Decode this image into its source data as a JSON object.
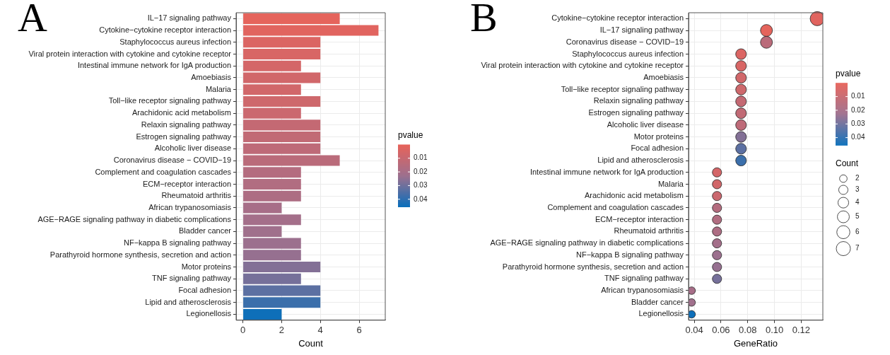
{
  "chart_data": [
    {
      "type": "bar",
      "title": "A",
      "orientation": "horizontal",
      "xlabel": "Count",
      "clabel": "pvalue",
      "grid": true,
      "categories": [
        "IL−17 signaling pathway",
        "Cytokine−cytokine receptor interaction",
        "Staphylococcus aureus infection",
        "Viral protein interaction with cytokine and cytokine receptor",
        "Intestinal immune network for IgA production",
        "Amoebiasis",
        "Malaria",
        "Toll−like receptor signaling pathway",
        "Arachidonic acid metabolism",
        "Relaxin signaling pathway",
        "Estrogen signaling pathway",
        "Alcoholic liver disease",
        "Coronavirus disease − COVID−19",
        "Complement and coagulation cascades",
        "ECM−receptor interaction",
        "Rheumatoid arthritis",
        "African trypanosomiasis",
        "AGE−RAGE signaling pathway in diabetic complications",
        "Bladder cancer",
        "NF−kappa B signaling pathway",
        "Parathyroid hormone synthesis, secretion and action",
        "Motor proteins",
        "TNF signaling pathway",
        "Focal adhesion",
        "Lipid and atherosclerosis",
        "Legionellosis"
      ],
      "values": [
        5,
        7,
        4,
        4,
        3,
        4,
        3,
        4,
        3,
        4,
        4,
        4,
        5,
        3,
        3,
        3,
        2,
        3,
        2,
        3,
        3,
        4,
        3,
        4,
        4,
        2
      ],
      "cvalues": [
        0.001,
        0.002,
        0.004,
        0.005,
        0.006,
        0.007,
        0.007,
        0.008,
        0.009,
        0.011,
        0.012,
        0.013,
        0.014,
        0.016,
        0.017,
        0.018,
        0.02,
        0.021,
        0.022,
        0.023,
        0.024,
        0.027,
        0.029,
        0.033,
        0.038,
        0.045
      ],
      "clim": [
        0,
        0.0455
      ],
      "cticks": [
        0.01,
        0.02,
        0.03,
        0.04
      ],
      "xlim": [
        -0.35,
        7.35
      ],
      "xticks": [
        0,
        2,
        4,
        6
      ]
    },
    {
      "type": "bubble",
      "title": "B",
      "orientation": "horizontal",
      "xlabel": "GeneRatio",
      "clabel": "pvalue",
      "legend_title": "Count",
      "grid": true,
      "categories": [
        "Cytokine−cytokine receptor interaction",
        "IL−17 signaling pathway",
        "Coronavirus disease − COVID−19",
        "Staphylococcus aureus infection",
        "Viral protein interaction with cytokine and cytokine receptor",
        "Amoebiasis",
        "Toll−like receptor signaling pathway",
        "Relaxin signaling pathway",
        "Estrogen signaling pathway",
        "Alcoholic liver disease",
        "Motor proteins",
        "Focal adhesion",
        "Lipid and atherosclerosis",
        "Intestinal immune network for IgA production",
        "Malaria",
        "Arachidonic acid metabolism",
        "Complement and coagulation cascades",
        "ECM−receptor interaction",
        "Rheumatoid arthritis",
        "AGE−RAGE signaling pathway in diabetic complications",
        "NF−kappa B signaling pathway",
        "Parathyroid hormone synthesis, secretion and action",
        "TNF signaling pathway",
        "African trypanosomiasis",
        "Bladder cancer",
        "Legionellosis"
      ],
      "values": [
        0.132,
        0.094,
        0.094,
        0.075,
        0.075,
        0.075,
        0.075,
        0.075,
        0.075,
        0.075,
        0.075,
        0.075,
        0.075,
        0.057,
        0.057,
        0.057,
        0.057,
        0.057,
        0.057,
        0.057,
        0.057,
        0.057,
        0.057,
        0.038,
        0.038,
        0.038
      ],
      "sizes": [
        7,
        5,
        5,
        4,
        4,
        4,
        4,
        4,
        4,
        4,
        4,
        4,
        4,
        3,
        3,
        3,
        3,
        3,
        3,
        3,
        3,
        3,
        3,
        2,
        2,
        2
      ],
      "cvalues": [
        0.002,
        0.001,
        0.014,
        0.004,
        0.005,
        0.007,
        0.008,
        0.011,
        0.012,
        0.013,
        0.027,
        0.033,
        0.038,
        0.006,
        0.007,
        0.009,
        0.016,
        0.017,
        0.018,
        0.021,
        0.023,
        0.024,
        0.029,
        0.02,
        0.022,
        0.045
      ],
      "size_legend": [
        2,
        3,
        4,
        5,
        6,
        7
      ],
      "clim": [
        0,
        0.0455
      ],
      "cticks": [
        0.01,
        0.02,
        0.03,
        0.04
      ],
      "xlim": [
        0.0357,
        0.1362
      ],
      "xticks": [
        0.04,
        0.06,
        0.08,
        {
          "value": 0.1,
          "label": "0.10"
        },
        0.12
      ]
    }
  ]
}
